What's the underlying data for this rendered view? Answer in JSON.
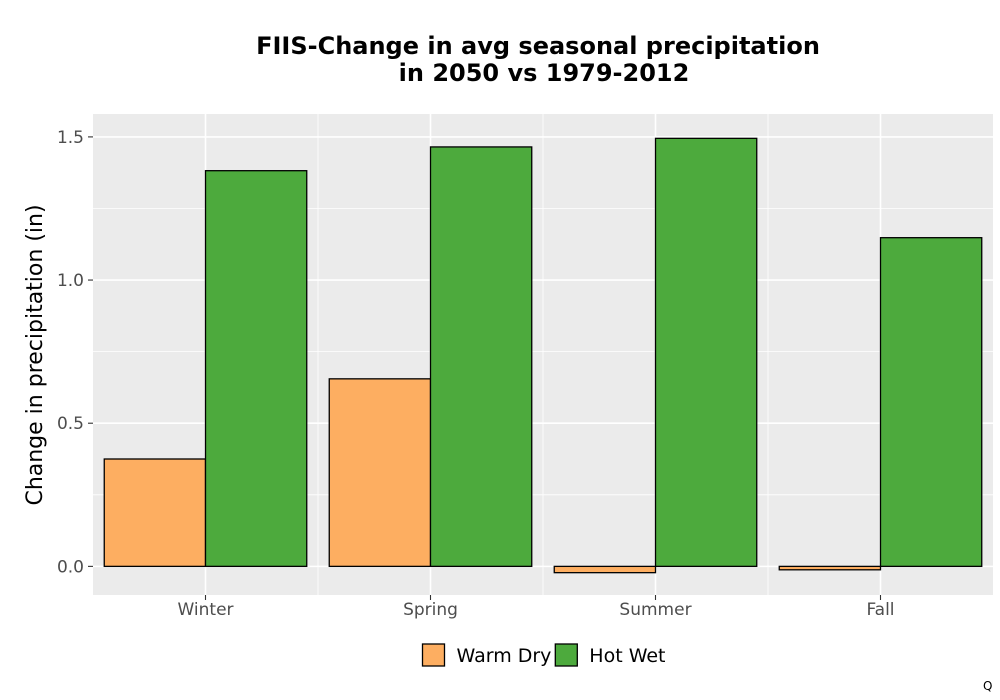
{
  "chart_data": {
    "type": "bar",
    "title_lines": [
      "FIIS-Change in avg seasonal precipitation",
      "in 2050 vs 1979-2012"
    ],
    "xlabel": "",
    "ylabel": "Change in precipitation (in)",
    "categories": [
      "Winter",
      "Spring",
      "Summer",
      "Fall"
    ],
    "series": [
      {
        "name": "Warm Dry",
        "color": "#FDAE61",
        "values": [
          0.375,
          0.655,
          -0.022,
          -0.012
        ]
      },
      {
        "name": "Hot Wet",
        "color": "#4DAA3D",
        "values": [
          1.382,
          1.465,
          1.495,
          1.148
        ]
      }
    ],
    "yticks": [
      0.0,
      0.5,
      1.0,
      1.5
    ],
    "ytick_labels": [
      "0.0",
      "0.5",
      "1.0",
      "1.5"
    ],
    "ylim": [
      -0.1,
      1.58
    ],
    "grid": true,
    "legend_position": "bottom",
    "panel_background": "#EBEBEB",
    "caption": "Q"
  }
}
